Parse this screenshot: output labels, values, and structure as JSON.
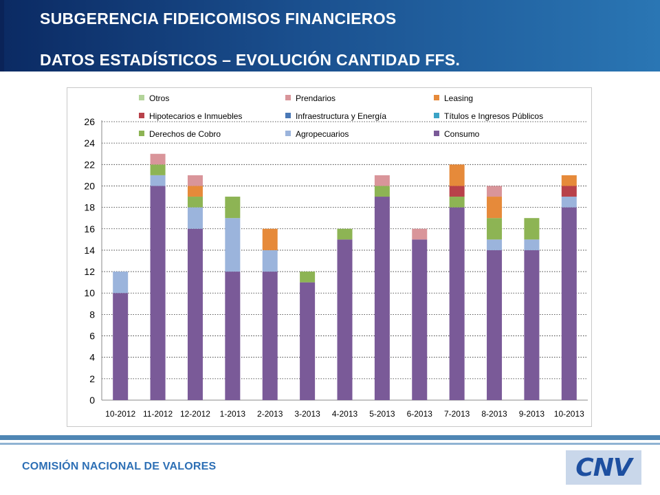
{
  "header": {
    "title_line1": "SUBGERENCIA FIDEICOMISOS FINANCIEROS",
    "title_line2": "DATOS ESTADÍSTICOS – EVOLUCIÓN CANTIDAD FFS."
  },
  "footer": {
    "organization": "COMISIÓN NACIONAL DE VALORES",
    "logo_text": "CNV"
  },
  "chart_data": {
    "type": "bar",
    "stacked": true,
    "categories": [
      "10-2012",
      "11-2012",
      "12-2012",
      "1-2013",
      "2-2013",
      "3-2013",
      "4-2013",
      "5-2013",
      "6-2013",
      "7-2013",
      "8-2013",
      "9-2013",
      "10-2013"
    ],
    "ylim": [
      0,
      26
    ],
    "yticks": [
      0,
      2,
      4,
      6,
      8,
      10,
      12,
      14,
      16,
      18,
      20,
      22,
      24,
      26
    ],
    "grid": true,
    "legend_position": "top",
    "series": [
      {
        "name": "Consumo",
        "color": "#7a5a98",
        "values": [
          10,
          20,
          16,
          12,
          12,
          11,
          15,
          19,
          15,
          18,
          14,
          14,
          18
        ]
      },
      {
        "name": "Agropecuarios",
        "color": "#9bb4dc",
        "values": [
          2,
          1,
          2,
          5,
          2,
          0,
          0,
          0,
          0,
          0,
          1,
          1,
          1
        ]
      },
      {
        "name": "Derechos de Cobro",
        "color": "#8db454",
        "values": [
          0,
          1,
          1,
          2,
          0,
          1,
          1,
          1,
          0,
          1,
          2,
          2,
          0
        ]
      },
      {
        "name": "Títulos e Ingresos Públicos",
        "color": "#3ba3c6",
        "values": [
          0,
          0,
          0,
          0,
          0,
          0,
          0,
          0,
          0,
          0,
          0,
          0,
          0
        ]
      },
      {
        "name": "Infraestructura y Energía",
        "color": "#4a78b6",
        "values": [
          0,
          0,
          0,
          0,
          0,
          0,
          0,
          0,
          0,
          0,
          0,
          0,
          0
        ]
      },
      {
        "name": "Hipotecarios e Inmuebles",
        "color": "#b8414a",
        "values": [
          0,
          0,
          0,
          0,
          0,
          0,
          0,
          0,
          0,
          1,
          0,
          0,
          1
        ]
      },
      {
        "name": "Leasing",
        "color": "#e68a3a",
        "values": [
          0,
          0,
          1,
          0,
          2,
          0,
          0,
          0,
          0,
          2,
          2,
          0,
          1
        ]
      },
      {
        "name": "Prendarios",
        "color": "#d9959a",
        "values": [
          0,
          1,
          1,
          0,
          0,
          0,
          0,
          1,
          1,
          0,
          1,
          0,
          0
        ]
      },
      {
        "name": "Otros",
        "color": "#b3d49a",
        "values": [
          0,
          0,
          0,
          0,
          0,
          0,
          0,
          0,
          0,
          0,
          0,
          0,
          0
        ]
      }
    ],
    "legend_order": [
      "Otros",
      "Prendarios",
      "Leasing",
      "Hipotecarios e Inmuebles",
      "Infraestructura y Energía",
      "Títulos e Ingresos Públicos",
      "Derechos de Cobro",
      "Agropecuarios",
      "Consumo"
    ]
  }
}
